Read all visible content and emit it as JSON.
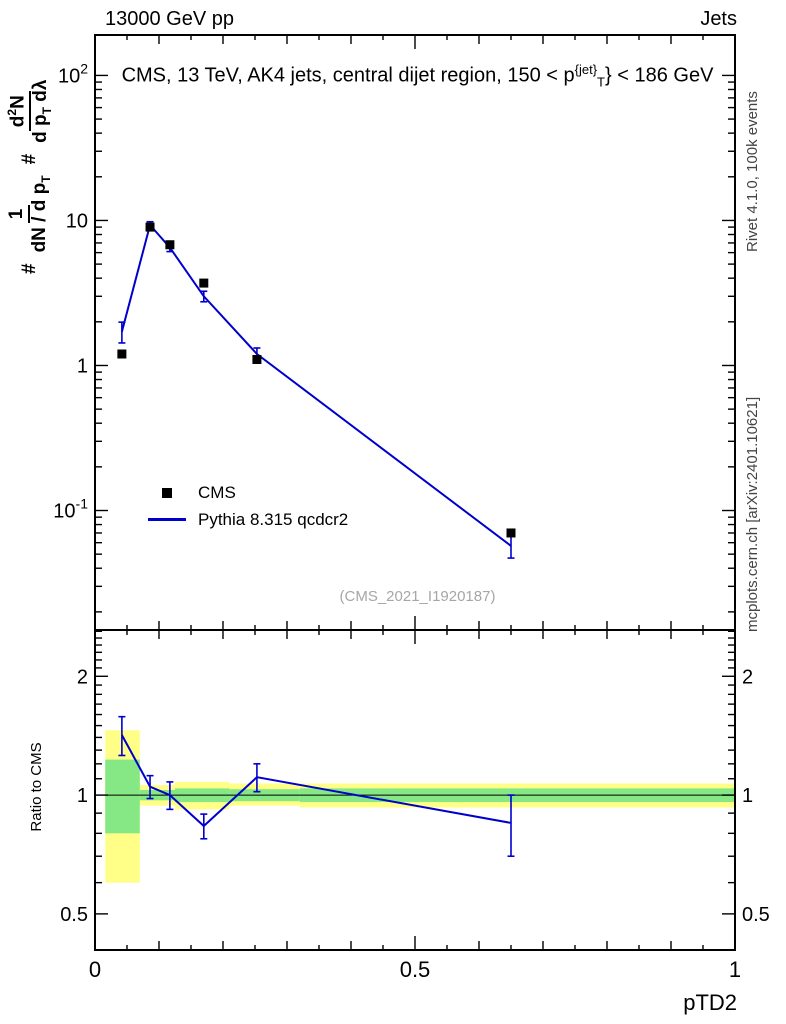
{
  "header": {
    "left": "13000 GeV pp",
    "right": "Jets"
  },
  "title": {
    "pre": "CMS, 13 TeV, AK4 jets, central dijet region, 150 < p",
    "sub": "T",
    "sup": "{jet}",
    "post": "} < 186 GeV"
  },
  "ylabel": {
    "hash": "#",
    "f1num": "1",
    "f1den_a": "dN / d p",
    "sub_t": "T",
    "f2num_a": "d",
    "sup_2": "2",
    "f2num_b": "N",
    "f2den_a": "d p",
    "f2den_b": " dλ"
  },
  "ratio_label": "Ratio to CMS",
  "legend": {
    "cms": "CMS",
    "pythia": "Pythia 8.315 qcdcr2"
  },
  "watermark": "(CMS_2021_I1920187)",
  "side": {
    "top": "Rivet 4.1.0, 100k events",
    "bottom": "mcplots.cern.ch [arXiv:2401.10621]"
  },
  "colors": {
    "mc": "#0000cc",
    "data": "#000000",
    "band_outer": "#ffff87",
    "band_inner": "#85e885",
    "gray": "#a6a6a6"
  },
  "xaxis": {
    "label": "pTD2",
    "ticks": [
      {
        "v": 0,
        "label": "0"
      },
      {
        "v": 0.5,
        "label": "0.5"
      },
      {
        "v": 1,
        "label": "1"
      }
    ]
  },
  "chart_data": {
    "type": "line",
    "title": "CMS, 13 TeV, AK4 jets, central dijet region, 150 < pT{jet} < 186 GeV",
    "xlabel": "pTD2",
    "xlim": [
      0,
      1
    ],
    "main_panel": {
      "yscale": "log",
      "ylim": [
        0.015,
        190
      ],
      "ytick_values": [
        0.1,
        1,
        10,
        100
      ],
      "series": [
        {
          "name": "CMS",
          "style": "squares",
          "color": "#000000",
          "x": [
            0.042,
            0.086,
            0.117,
            0.17,
            0.253,
            0.65
          ],
          "y": [
            1.2,
            9.0,
            6.8,
            3.7,
            1.1,
            0.07
          ]
        },
        {
          "name": "Pythia 8.315 qcdcr2",
          "style": "line",
          "color": "#0000cc",
          "x": [
            0.042,
            0.086,
            0.117,
            0.17,
            0.253,
            0.65
          ],
          "y": [
            1.71,
            9.3,
            6.5,
            3.0,
            1.2,
            0.057
          ],
          "yerr": [
            0.28,
            0.5,
            0.4,
            0.25,
            0.12,
            0.01
          ]
        }
      ]
    },
    "ratio_panel": {
      "yscale": "log",
      "ylim": [
        0.405,
        2.62
      ],
      "ytick_values": [
        0.5,
        1,
        2
      ],
      "ratio": {
        "x": [
          0.042,
          0.086,
          0.117,
          0.17,
          0.253,
          0.65
        ],
        "y": [
          1.42,
          1.05,
          1.0,
          0.835,
          1.11,
          0.85
        ],
        "yerr": [
          0.16,
          0.07,
          0.08,
          0.06,
          0.09,
          0.15
        ]
      },
      "bands": [
        {
          "x0": 0.016,
          "x1": 0.07,
          "outer": [
            0.6,
            1.46
          ],
          "inner": [
            0.8,
            1.23
          ]
        },
        {
          "x0": 0.07,
          "x1": 0.125,
          "outer": [
            0.94,
            1.06
          ],
          "inner": [
            0.97,
            1.03
          ]
        },
        {
          "x0": 0.125,
          "x1": 0.21,
          "outer": [
            0.92,
            1.08
          ],
          "inner": [
            0.96,
            1.04
          ]
        },
        {
          "x0": 0.21,
          "x1": 0.32,
          "outer": [
            0.94,
            1.07
          ],
          "inner": [
            0.965,
            1.035
          ]
        },
        {
          "x0": 0.32,
          "x1": 1.0,
          "outer": [
            0.93,
            1.07
          ],
          "inner": [
            0.96,
            1.04
          ]
        }
      ]
    }
  }
}
